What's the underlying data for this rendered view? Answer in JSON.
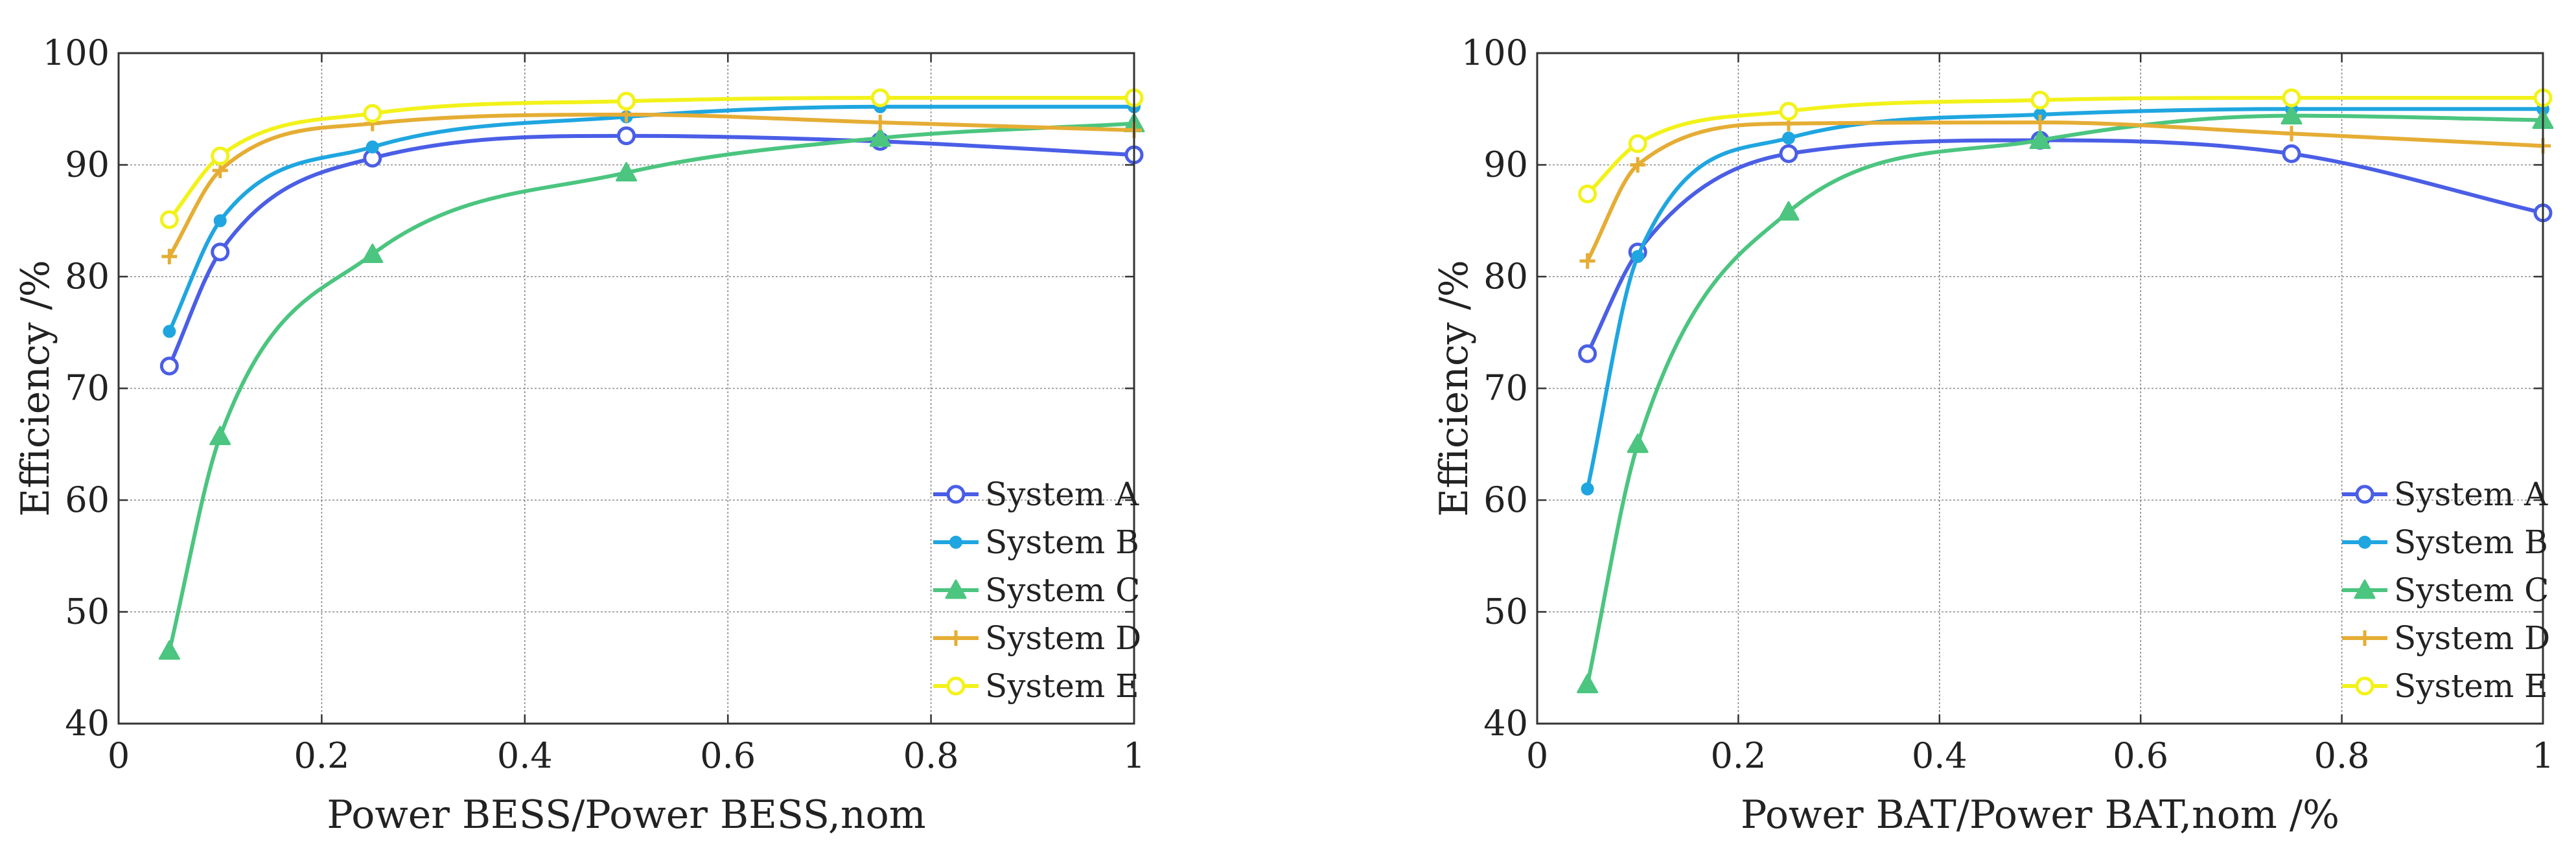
{
  "chart_data": [
    {
      "type": "line",
      "title": "",
      "xlabel": "Power BESS/Power BESS,nom",
      "ylabel": "Efficiency /%",
      "xlim": [
        0,
        1
      ],
      "ylim": [
        40,
        100
      ],
      "xticks": [
        0,
        0.2,
        0.4,
        0.6,
        0.8,
        1
      ],
      "xtick_labels": [
        "0",
        "0.2",
        "0.4",
        "0.6",
        "0.8",
        "1"
      ],
      "yticks": [
        40,
        50,
        60,
        70,
        80,
        90,
        100
      ],
      "ytick_labels": [
        "40",
        "50",
        "60",
        "70",
        "80",
        "90",
        "100"
      ],
      "grid": true,
      "legend_position": "bottom-right",
      "series": [
        {
          "name": "System A",
          "label": "System A",
          "color": "#4a5ee6",
          "marker": "circle-open",
          "x": [
            0.05,
            0.1,
            0.25,
            0.5,
            0.75,
            1.0
          ],
          "values": [
            72.0,
            82.2,
            90.6,
            92.6,
            92.1,
            90.9
          ]
        },
        {
          "name": "System B",
          "label": "System B",
          "color": "#1fa6e0",
          "marker": "dot",
          "x": [
            0.05,
            0.1,
            0.25,
            0.5,
            0.75,
            1.0
          ],
          "values": [
            75.1,
            85.0,
            91.6,
            94.3,
            95.2,
            95.2
          ]
        },
        {
          "name": "System C",
          "label": "System C",
          "color": "#4bc57f",
          "marker": "triangle",
          "x": [
            0.05,
            0.1,
            0.25,
            0.5,
            0.75,
            1.0
          ],
          "values": [
            46.5,
            65.7,
            82.0,
            89.3,
            92.4,
            93.7
          ]
        },
        {
          "name": "System D",
          "label": "System D",
          "color": "#e5ad34",
          "marker": "plus",
          "x": [
            0.05,
            0.1,
            0.25,
            0.5,
            0.75,
            1.0
          ],
          "values": [
            81.8,
            89.5,
            93.7,
            94.5,
            93.8,
            93.1
          ]
        },
        {
          "name": "System E",
          "label": "System E",
          "color": "#f2f21a",
          "marker": "circle-open",
          "x": [
            0.05,
            0.1,
            0.25,
            0.5,
            0.75,
            1.0
          ],
          "values": [
            85.1,
            90.8,
            94.6,
            95.7,
            96.0,
            96.0
          ]
        }
      ]
    },
    {
      "type": "line",
      "title": "",
      "xlabel": "Power BAT/Power BAT,nom /%",
      "ylabel": "Efficiency /%",
      "xlim": [
        0,
        1
      ],
      "ylim": [
        40,
        100
      ],
      "xticks": [
        0,
        0.2,
        0.4,
        0.6,
        0.8,
        1
      ],
      "xtick_labels": [
        "0",
        "0.2",
        "0.4",
        "0.6",
        "0.8",
        "1"
      ],
      "yticks": [
        40,
        50,
        60,
        70,
        80,
        90,
        100
      ],
      "ytick_labels": [
        "40",
        "50",
        "60",
        "70",
        "80",
        "90",
        "100"
      ],
      "grid": true,
      "legend_position": "bottom-right",
      "series": [
        {
          "name": "System A",
          "label": "System A",
          "color": "#4a5ee6",
          "marker": "circle-open",
          "x": [
            0.05,
            0.1,
            0.25,
            0.5,
            0.75,
            1.0
          ],
          "values": [
            73.1,
            82.2,
            91.0,
            92.2,
            91.0,
            85.7
          ]
        },
        {
          "name": "System B",
          "label": "System B",
          "color": "#1fa6e0",
          "marker": "dot",
          "x": [
            0.05,
            0.1,
            0.25,
            0.5,
            0.75,
            1.0
          ],
          "values": [
            61.0,
            81.8,
            92.4,
            94.5,
            95.0,
            95.0
          ]
        },
        {
          "name": "System C",
          "label": "System C",
          "color": "#4bc57f",
          "marker": "triangle",
          "x": [
            0.05,
            0.1,
            0.25,
            0.5,
            0.75,
            1.0
          ],
          "values": [
            43.5,
            65.0,
            85.8,
            92.2,
            94.4,
            94.0
          ]
        },
        {
          "name": "System D",
          "label": "System D",
          "color": "#e5ad34",
          "marker": "plus",
          "x": [
            0.05,
            0.1,
            0.25,
            0.5,
            0.75,
            1.0
          ],
          "values": [
            81.4,
            90.0,
            93.7,
            93.8,
            92.8,
            91.7
          ]
        },
        {
          "name": "System E",
          "label": "System E",
          "color": "#f2f21a",
          "marker": "circle-open",
          "x": [
            0.05,
            0.1,
            0.25,
            0.5,
            0.75,
            1.0
          ],
          "values": [
            87.4,
            91.9,
            94.8,
            95.8,
            96.0,
            96.0
          ]
        }
      ]
    }
  ]
}
